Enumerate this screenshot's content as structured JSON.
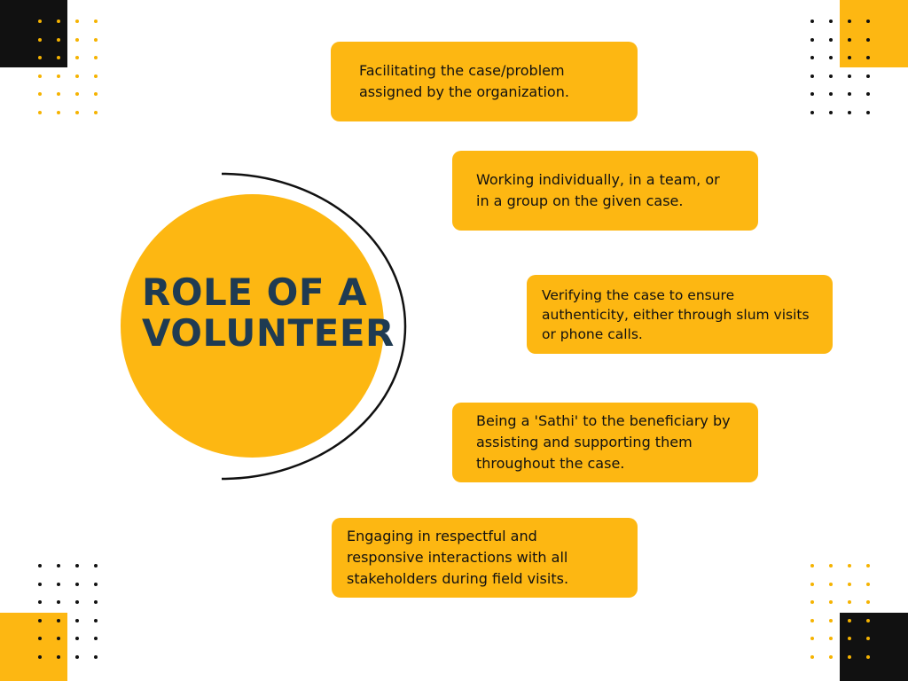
{
  "title": {
    "line1": "ROLE OF A",
    "line2": "VOLUNTEER"
  },
  "roles": [
    "Facilitating the case/problem\nassigned by the organization.",
    "Working individually, in a team, or\nin a group on the given case.",
    "Verifying the case to ensure\nauthenticity, either through slum visits\nor phone calls.",
    "Being a 'Sathi' to the beneficiary by\nassisting and supporting them\nthroughout the case.",
    "Engaging in respectful and\nresponsive interactions with all\nstakeholders during field visits."
  ],
  "colors": {
    "accent": "#fdb712",
    "title": "#1f3b52",
    "dark": "#111111",
    "background": "#ffffff"
  }
}
